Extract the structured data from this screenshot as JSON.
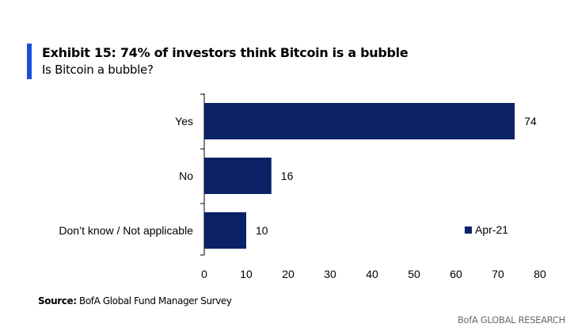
{
  "header": {
    "title": "Exhibit 15: 74% of investors think Bitcoin is a bubble",
    "subtitle": "Is Bitcoin a bubble?"
  },
  "footer": {
    "source_label": "Source:",
    "source_text": " BofA Global Fund Manager Survey",
    "brand": "BofA GLOBAL RESEARCH"
  },
  "colors": {
    "accent": "#1a4fd6",
    "bar": "#0c2266"
  },
  "chart_data": {
    "type": "bar",
    "orientation": "horizontal",
    "title": "Exhibit 15: 74% of investors think Bitcoin is a bubble",
    "subtitle": "Is Bitcoin a bubble?",
    "categories": [
      "Yes",
      "No",
      "Don’t know / Not applicable"
    ],
    "series": [
      {
        "name": "Apr-21",
        "values": [
          74,
          16,
          10
        ]
      }
    ],
    "xlim": [
      0,
      80
    ],
    "xticks": [
      0,
      10,
      20,
      30,
      40,
      50,
      60,
      70,
      80
    ],
    "data_labels": [
      "74",
      "16",
      "10"
    ],
    "grid": false,
    "legend": "bottom-right"
  }
}
